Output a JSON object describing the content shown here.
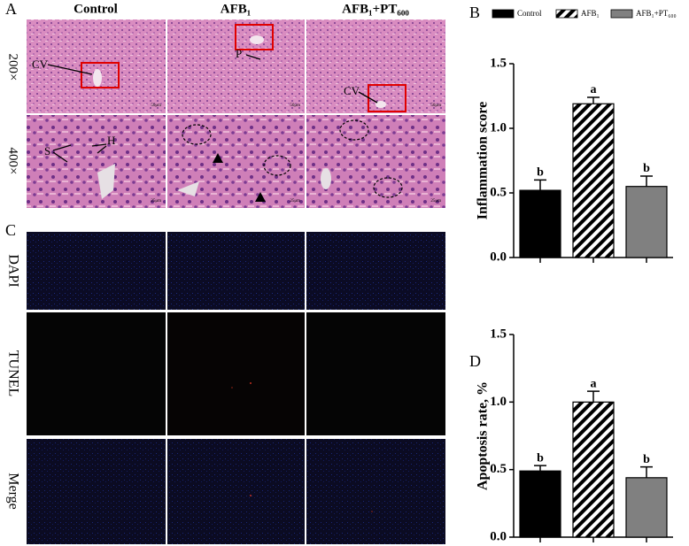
{
  "figure": {
    "panel_labels": [
      "A",
      "B",
      "C",
      "D"
    ],
    "histology": {
      "columns": [
        "Control",
        "AFB₁",
        "AFB₁+PT₆₀₀"
      ],
      "rows": [
        "200×",
        "400×"
      ],
      "labels": [
        "CV",
        "P",
        "CV",
        "S",
        "H"
      ],
      "scale_bars": [
        "50μm",
        "50μm",
        "50μm",
        "25μm",
        "25μm",
        "25μm"
      ]
    },
    "fluorescence": {
      "rows": [
        "DAPI",
        "TUNEL",
        "Merge"
      ]
    }
  },
  "chart_data": [
    {
      "type": "bar",
      "y_label": "Inflammation score",
      "categories": [
        "Control",
        "AFB₁",
        "AFB₁+PT₆₀₀"
      ],
      "values": [
        0.52,
        1.19,
        0.55
      ],
      "errors": [
        0.08,
        0.05,
        0.08
      ],
      "annotations": [
        "b",
        "a",
        "b"
      ],
      "colors": [
        "#000000",
        "#ffffff",
        "#808080"
      ],
      "hatched": [
        false,
        true,
        false
      ],
      "legend": "top",
      "ylim": [
        0,
        1.5
      ],
      "yticks": [
        {
          "value": 0,
          "label": "0.0"
        },
        {
          "value": 0.5,
          "label": "0.5"
        },
        {
          "value": 1,
          "label": "1.0"
        },
        {
          "value": 1.5,
          "label": "1.5"
        }
      ]
    },
    {
      "type": "bar",
      "y_label": "Apoptosis rate, %",
      "categories": [
        null,
        null,
        null
      ],
      "values": [
        0.49,
        1.0,
        0.44
      ],
      "errors": [
        0.04,
        0.08,
        0.08
      ],
      "annotations": [
        "b",
        "a",
        "b"
      ],
      "colors": [
        "#000000",
        "#ffffff",
        "#808080"
      ],
      "hatched": [
        false,
        true,
        false
      ],
      "ylim": [
        0,
        1.5
      ],
      "yticks": [
        {
          "value": 0,
          "label": "0.0"
        },
        {
          "value": 0.5,
          "label": "0.5"
        },
        {
          "value": 1,
          "label": "1.0"
        },
        {
          "value": 1.5,
          "label": "1.5"
        }
      ]
    }
  ]
}
